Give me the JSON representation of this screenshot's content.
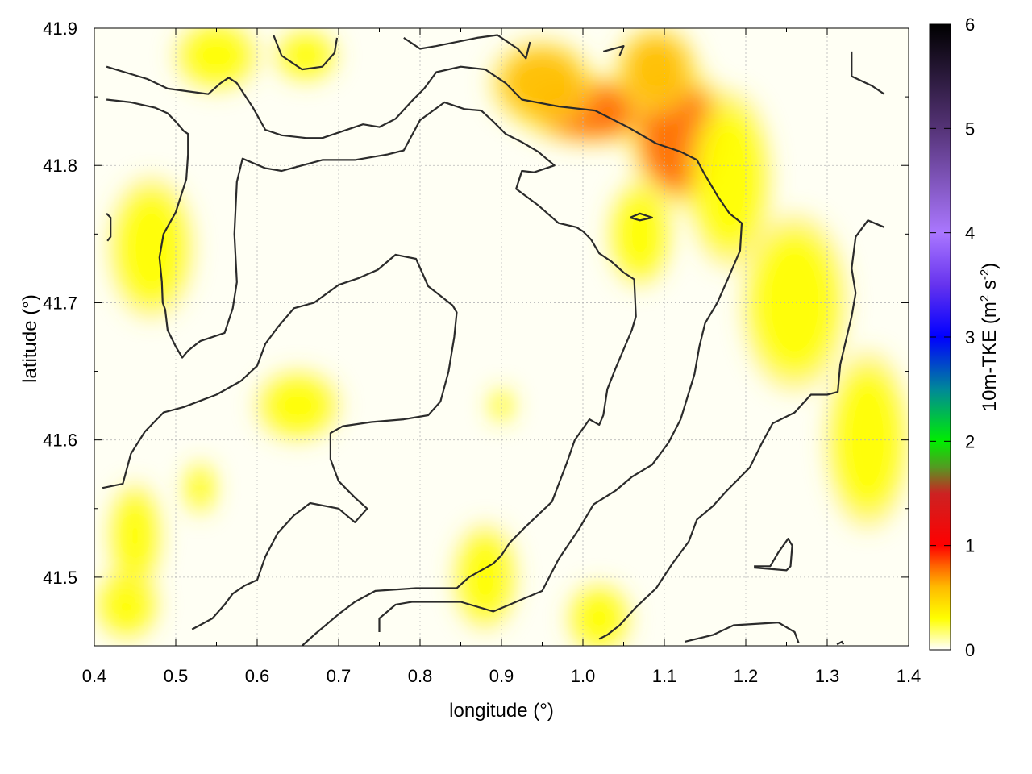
{
  "chart_data": {
    "type": "heatmap",
    "title": "",
    "xlabel": "longitude (°)",
    "ylabel": "latitude (°)",
    "xlim": [
      0.4,
      1.4
    ],
    "ylim": [
      41.45,
      41.9
    ],
    "x_ticks": [
      "0.4",
      "0.5",
      "0.6",
      "0.7",
      "0.8",
      "0.9",
      "1.0",
      "1.1",
      "1.2",
      "1.3",
      "1.4"
    ],
    "y_ticks": [
      "41.5",
      "41.6",
      "41.7",
      "41.8",
      "41.9"
    ],
    "grid": true,
    "colorbar": {
      "label_main": "10m-TKE (m",
      "label_sup1": "2",
      "label_mid": " s",
      "label_sup2": "-2",
      "label_end": ")",
      "range": [
        0,
        6
      ],
      "ticks": [
        "0",
        "1",
        "2",
        "3",
        "4",
        "5",
        "6"
      ],
      "stops": [
        {
          "v": 0.0,
          "c": "#ffffff"
        },
        {
          "v": 0.3,
          "c": "#ffff00"
        },
        {
          "v": 0.6,
          "c": "#ffbb00"
        },
        {
          "v": 0.8,
          "c": "#ff6600"
        },
        {
          "v": 1.0,
          "c": "#ff0000"
        },
        {
          "v": 1.5,
          "c": "#cc2222"
        },
        {
          "v": 1.75,
          "c": "#559922"
        },
        {
          "v": 2.0,
          "c": "#00ee00"
        },
        {
          "v": 2.5,
          "c": "#008899"
        },
        {
          "v": 3.0,
          "c": "#0000ff"
        },
        {
          "v": 3.5,
          "c": "#6633ee"
        },
        {
          "v": 4.0,
          "c": "#aa77ff"
        },
        {
          "v": 5.0,
          "c": "#553377"
        },
        {
          "v": 6.0,
          "c": "#000000"
        }
      ]
    },
    "hotspots": [
      {
        "lon": 1.01,
        "lat": 41.84,
        "value": 0.85,
        "rx": 0.07,
        "ry": 0.02
      },
      {
        "lon": 1.12,
        "lat": 41.82,
        "value": 0.8,
        "rx": 0.05,
        "ry": 0.04
      },
      {
        "lon": 0.95,
        "lat": 41.86,
        "value": 0.7,
        "rx": 0.05,
        "ry": 0.025
      },
      {
        "lon": 1.18,
        "lat": 41.79,
        "value": 0.55,
        "rx": 0.04,
        "ry": 0.05
      },
      {
        "lon": 1.09,
        "lat": 41.87,
        "value": 0.6,
        "rx": 0.04,
        "ry": 0.025
      },
      {
        "lon": 0.65,
        "lat": 41.625,
        "value": 0.55,
        "rx": 0.04,
        "ry": 0.02
      },
      {
        "lon": 0.66,
        "lat": 41.88,
        "value": 0.5,
        "rx": 0.03,
        "ry": 0.015
      },
      {
        "lon": 1.07,
        "lat": 41.75,
        "value": 0.45,
        "rx": 0.03,
        "ry": 0.03
      },
      {
        "lon": 0.53,
        "lat": 41.565,
        "value": 0.5,
        "rx": 0.015,
        "ry": 0.015
      },
      {
        "lon": 0.44,
        "lat": 41.48,
        "value": 0.5,
        "rx": 0.03,
        "ry": 0.02
      },
      {
        "lon": 0.45,
        "lat": 41.53,
        "value": 0.4,
        "rx": 0.025,
        "ry": 0.03
      },
      {
        "lon": 0.88,
        "lat": 41.5,
        "value": 0.45,
        "rx": 0.03,
        "ry": 0.03
      },
      {
        "lon": 1.02,
        "lat": 41.47,
        "value": 0.4,
        "rx": 0.03,
        "ry": 0.02
      },
      {
        "lon": 0.47,
        "lat": 41.74,
        "value": 0.35,
        "rx": 0.04,
        "ry": 0.04
      },
      {
        "lon": 0.9,
        "lat": 41.625,
        "value": 0.4,
        "rx": 0.012,
        "ry": 0.01
      },
      {
        "lon": 1.26,
        "lat": 41.7,
        "value": 0.35,
        "rx": 0.05,
        "ry": 0.05
      },
      {
        "lon": 0.55,
        "lat": 41.88,
        "value": 0.35,
        "rx": 0.04,
        "ry": 0.02
      },
      {
        "lon": 1.35,
        "lat": 41.6,
        "value": 0.3,
        "rx": 0.04,
        "ry": 0.05
      }
    ],
    "contours": [
      [
        [
          0.415,
          41.872
        ],
        [
          0.465,
          41.863
        ],
        [
          0.49,
          41.856
        ],
        [
          0.54,
          41.852
        ],
        [
          0.555,
          41.86
        ],
        [
          0.565,
          41.864
        ],
        [
          0.575,
          41.86
        ],
        [
          0.595,
          41.842
        ],
        [
          0.61,
          41.826
        ],
        [
          0.63,
          41.822
        ],
        [
          0.66,
          41.82
        ],
        [
          0.68,
          41.82
        ],
        [
          0.73,
          41.83
        ],
        [
          0.75,
          41.828
        ],
        [
          0.77,
          41.834
        ],
        [
          0.79,
          41.847
        ],
        [
          0.805,
          41.856
        ],
        [
          0.82,
          41.868
        ],
        [
          0.85,
          41.872
        ],
        [
          0.88,
          41.87
        ],
        [
          0.905,
          41.86
        ],
        [
          0.925,
          41.848
        ],
        [
          0.97,
          41.843
        ],
        [
          1.015,
          41.84
        ],
        [
          1.055,
          41.828
        ],
        [
          1.09,
          41.816
        ],
        [
          1.12,
          41.81
        ],
        [
          1.14,
          41.804
        ],
        [
          1.15,
          41.793
        ],
        [
          1.165,
          41.778
        ],
        [
          1.18,
          41.765
        ],
        [
          1.195,
          41.758
        ],
        [
          1.193,
          41.738
        ],
        [
          1.18,
          41.72
        ],
        [
          1.165,
          41.7
        ],
        [
          1.15,
          41.685
        ],
        [
          1.143,
          41.668
        ],
        [
          1.137,
          41.648
        ],
        [
          1.12,
          41.615
        ],
        [
          1.105,
          41.598
        ],
        [
          1.085,
          41.582
        ],
        [
          1.06,
          41.573
        ],
        [
          1.04,
          41.563
        ],
        [
          1.013,
          41.553
        ],
        [
          0.995,
          41.535
        ],
        [
          0.97,
          41.513
        ],
        [
          0.95,
          41.49
        ],
        [
          0.93,
          41.485
        ],
        [
          0.89,
          41.475
        ],
        [
          0.85,
          41.482
        ],
        [
          0.79,
          41.482
        ],
        [
          0.77,
          41.48
        ],
        [
          0.75,
          41.47
        ],
        [
          0.75,
          41.46
        ]
      ],
      [
        [
          0.415,
          41.848
        ],
        [
          0.445,
          41.846
        ],
        [
          0.475,
          41.842
        ],
        [
          0.49,
          41.838
        ],
        [
          0.5,
          41.832
        ],
        [
          0.51,
          41.825
        ],
        [
          0.515,
          41.823
        ],
        [
          0.515,
          41.808
        ],
        [
          0.513,
          41.79
        ],
        [
          0.5,
          41.766
        ],
        [
          0.485,
          41.75
        ],
        [
          0.48,
          41.733
        ],
        [
          0.483,
          41.715
        ],
        [
          0.484,
          41.7
        ],
        [
          0.487,
          41.695
        ],
        [
          0.49,
          41.68
        ],
        [
          0.5,
          41.668
        ],
        [
          0.508,
          41.66
        ],
        [
          0.515,
          41.665
        ],
        [
          0.53,
          41.672
        ],
        [
          0.56,
          41.678
        ],
        [
          0.57,
          41.696
        ],
        [
          0.575,
          41.715
        ],
        [
          0.572,
          41.75
        ],
        [
          0.575,
          41.788
        ],
        [
          0.582,
          41.805
        ],
        [
          0.61,
          41.798
        ],
        [
          0.63,
          41.796
        ],
        [
          0.68,
          41.804
        ],
        [
          0.72,
          41.804
        ],
        [
          0.76,
          41.808
        ],
        [
          0.78,
          41.811
        ],
        [
          0.8,
          41.833
        ],
        [
          0.83,
          41.846
        ],
        [
          0.855,
          41.841
        ],
        [
          0.875,
          41.84
        ],
        [
          0.89,
          41.832
        ],
        [
          0.905,
          41.823
        ],
        [
          0.925,
          41.817
        ],
        [
          0.945,
          41.81
        ],
        [
          0.965,
          41.8
        ],
        [
          0.94,
          41.795
        ],
        [
          0.925,
          41.796
        ],
        [
          0.918,
          41.783
        ],
        [
          0.945,
          41.771
        ],
        [
          0.97,
          41.758
        ],
        [
          0.992,
          41.755
        ],
        [
          1.0,
          41.752
        ],
        [
          1.01,
          41.746
        ],
        [
          1.02,
          41.736
        ],
        [
          1.035,
          41.73
        ],
        [
          1.05,
          41.722
        ],
        [
          1.063,
          41.717
        ],
        [
          1.065,
          41.69
        ],
        [
          1.06,
          41.68
        ],
        [
          1.04,
          41.652
        ],
        [
          1.03,
          41.637
        ],
        [
          1.025,
          41.618
        ],
        [
          1.02,
          41.611
        ],
        [
          1.008,
          41.615
        ],
        [
          0.99,
          41.6
        ],
        [
          0.98,
          41.583
        ],
        [
          0.962,
          41.555
        ],
        [
          0.93,
          41.537
        ],
        [
          0.91,
          41.525
        ],
        [
          0.9,
          41.516
        ],
        [
          0.89,
          41.51
        ],
        [
          0.86,
          41.5
        ],
        [
          0.845,
          41.492
        ],
        [
          0.795,
          41.492
        ],
        [
          0.745,
          41.49
        ],
        [
          0.72,
          41.482
        ],
        [
          0.7,
          41.473
        ],
        [
          0.67,
          41.458
        ],
        [
          0.655,
          41.45
        ]
      ],
      [
        [
          0.41,
          41.565
        ],
        [
          0.435,
          41.568
        ],
        [
          0.445,
          41.59
        ],
        [
          0.462,
          41.606
        ],
        [
          0.485,
          41.62
        ],
        [
          0.51,
          41.624
        ],
        [
          0.55,
          41.633
        ],
        [
          0.58,
          41.643
        ],
        [
          0.6,
          41.654
        ],
        [
          0.61,
          41.67
        ],
        [
          0.625,
          41.682
        ],
        [
          0.645,
          41.696
        ],
        [
          0.67,
          41.7
        ],
        [
          0.7,
          41.713
        ],
        [
          0.725,
          41.718
        ],
        [
          0.748,
          41.724
        ],
        [
          0.77,
          41.735
        ],
        [
          0.795,
          41.732
        ],
        [
          0.81,
          41.712
        ],
        [
          0.84,
          41.698
        ],
        [
          0.845,
          41.693
        ],
        [
          0.842,
          41.675
        ],
        [
          0.835,
          41.65
        ],
        [
          0.825,
          41.628
        ],
        [
          0.81,
          41.618
        ],
        [
          0.78,
          41.615
        ],
        [
          0.74,
          41.613
        ],
        [
          0.705,
          41.61
        ],
        [
          0.69,
          41.605
        ],
        [
          0.69,
          41.586
        ],
        [
          0.7,
          41.57
        ],
        [
          0.72,
          41.558
        ],
        [
          0.735,
          41.55
        ],
        [
          0.72,
          41.54
        ],
        [
          0.7,
          41.55
        ],
        [
          0.665,
          41.554
        ],
        [
          0.645,
          41.545
        ],
        [
          0.625,
          41.532
        ],
        [
          0.61,
          41.515
        ],
        [
          0.6,
          41.498
        ],
        [
          0.585,
          41.494
        ],
        [
          0.57,
          41.488
        ],
        [
          0.56,
          41.48
        ],
        [
          0.545,
          41.47
        ],
        [
          0.52,
          41.462
        ]
      ],
      [
        [
          1.125,
          41.453
        ],
        [
          1.16,
          41.458
        ],
        [
          1.185,
          41.465
        ],
        [
          1.24,
          41.467
        ],
        [
          1.26,
          41.46
        ],
        [
          1.265,
          41.452
        ]
      ],
      [
        [
          1.21,
          41.507
        ],
        [
          1.25,
          41.505
        ],
        [
          1.255,
          41.508
        ],
        [
          1.257,
          41.523
        ],
        [
          1.252,
          41.528
        ],
        [
          1.24,
          41.518
        ],
        [
          1.23,
          41.508
        ],
        [
          1.21,
          41.508
        ]
      ],
      [
        [
          1.37,
          41.755
        ],
        [
          1.35,
          41.76
        ],
        [
          1.335,
          41.748
        ],
        [
          1.33,
          41.725
        ],
        [
          1.335,
          41.707
        ],
        [
          1.33,
          41.69
        ],
        [
          1.322,
          41.67
        ],
        [
          1.316,
          41.655
        ],
        [
          1.313,
          41.635
        ],
        [
          1.3,
          41.633
        ],
        [
          1.28,
          41.633
        ],
        [
          1.26,
          41.62
        ],
        [
          1.233,
          41.612
        ],
        [
          1.22,
          41.598
        ],
        [
          1.205,
          41.58
        ],
        [
          1.175,
          41.562
        ],
        [
          1.16,
          41.552
        ],
        [
          1.14,
          41.542
        ],
        [
          1.13,
          41.526
        ],
        [
          1.11,
          41.51
        ],
        [
          1.09,
          41.492
        ],
        [
          1.065,
          41.478
        ],
        [
          1.045,
          41.465
        ],
        [
          1.03,
          41.458
        ],
        [
          1.02,
          41.455
        ]
      ],
      [
        [
          0.415,
          41.765
        ],
        [
          0.42,
          41.762
        ],
        [
          0.42,
          41.748
        ],
        [
          0.416,
          41.745
        ]
      ],
      [
        [
          0.62,
          41.895
        ],
        [
          0.63,
          41.88
        ],
        [
          0.655,
          41.87
        ],
        [
          0.68,
          41.872
        ],
        [
          0.695,
          41.882
        ],
        [
          0.698,
          41.893
        ]
      ],
      [
        [
          0.78,
          41.893
        ],
        [
          0.8,
          41.885
        ],
        [
          0.82,
          41.887
        ],
        [
          0.87,
          41.893
        ],
        [
          0.895,
          41.895
        ],
        [
          0.92,
          41.885
        ],
        [
          0.93,
          41.878
        ],
        [
          0.935,
          41.89
        ]
      ],
      [
        [
          1.025,
          41.883
        ],
        [
          1.05,
          41.887
        ],
        [
          1.045,
          41.88
        ]
      ],
      [
        [
          1.33,
          41.883
        ],
        [
          1.33,
          41.865
        ],
        [
          1.355,
          41.858
        ],
        [
          1.37,
          41.852
        ]
      ],
      [
        [
          1.058,
          41.762
        ],
        [
          1.07,
          41.765
        ],
        [
          1.085,
          41.762
        ],
        [
          1.07,
          41.76
        ],
        [
          1.058,
          41.762
        ]
      ],
      [
        [
          1.312,
          41.451
        ],
        [
          1.318,
          41.453
        ],
        [
          1.32,
          41.451
        ]
      ]
    ]
  }
}
